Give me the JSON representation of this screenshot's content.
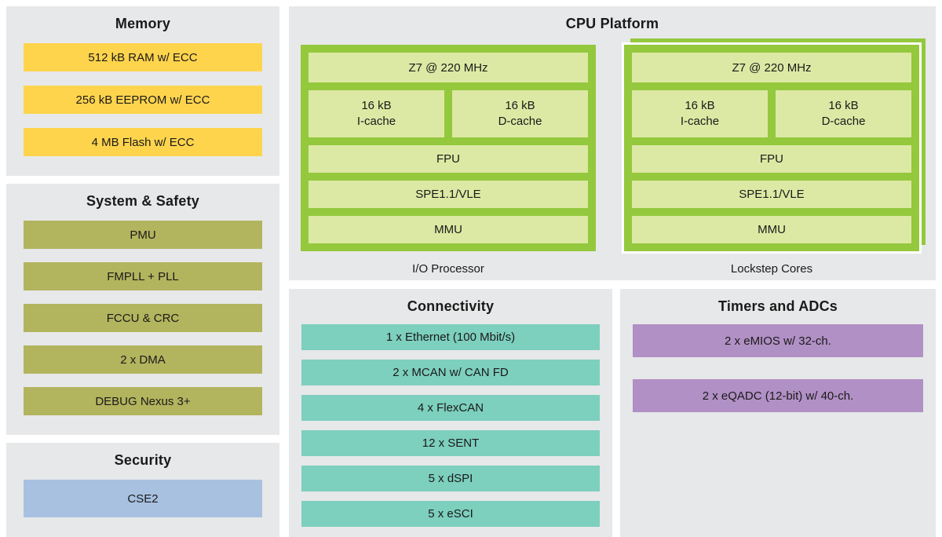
{
  "colors": {
    "panel_bg": "#E7E8E9",
    "memory_bar": "#FFD44D",
    "system_bar": "#B3B45E",
    "security_bar": "#A8C1E0",
    "core_green": "#94C83D",
    "core_inner": "#DCE9A4",
    "connectivity_bar": "#7DCFBE",
    "timers_bar": "#B190C5",
    "text": "#1A1A1A"
  },
  "memory": {
    "title": "Memory",
    "items": [
      "512 kB RAM w/ ECC",
      "256 kB EEPROM w/ ECC",
      "4 MB Flash w/ ECC"
    ]
  },
  "system_safety": {
    "title": "System & Safety",
    "items": [
      "PMU",
      "FMPLL + PLL",
      "FCCU & CRC",
      "2 x DMA",
      "DEBUG Nexus 3+"
    ]
  },
  "security": {
    "title": "Security",
    "items": [
      "CSE2"
    ]
  },
  "cpu": {
    "title": "CPU Platform",
    "cores": [
      {
        "caption": "I/O Processor",
        "z7": "Z7 @ 220 MHz",
        "icache": "16 kB\nI-cache",
        "dcache": "16 kB\nD-cache",
        "fpu": "FPU",
        "spe": "SPE1.1/VLE",
        "mmu": "MMU"
      },
      {
        "caption": "Lockstep Cores",
        "z7": "Z7 @ 220 MHz",
        "icache": "16 kB\nI-cache",
        "dcache": "16 kB\nD-cache",
        "fpu": "FPU",
        "spe": "SPE1.1/VLE",
        "mmu": "MMU"
      }
    ]
  },
  "connectivity": {
    "title": "Connectivity",
    "items": [
      "1 x Ethernet (100 Mbit/s)",
      "2 x MCAN w/ CAN FD",
      "4 x FlexCAN",
      "12 x SENT",
      "5 x dSPI",
      "5 x eSCI"
    ]
  },
  "timers": {
    "title": "Timers and ADCs",
    "items": [
      "2 x eMIOS w/ 32-ch.",
      "2 x eQADC (12-bit) w/ 40-ch."
    ]
  }
}
